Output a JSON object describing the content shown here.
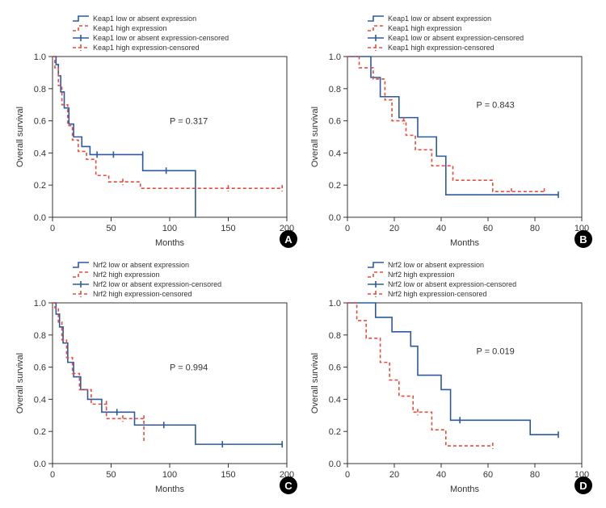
{
  "global": {
    "line_color_low": "#2c5aa0",
    "line_color_high": "#e74c3c",
    "text_color": "#333333",
    "axis_color": "#333333",
    "badge_bg": "#000000",
    "badge_fg": "#ffffff",
    "y_label": "Overall survival",
    "x_label": "Months",
    "font_family": "Arial, Helvetica, sans-serif",
    "axis_fontsize": 11,
    "legend_fontsize": 9,
    "label_fontsize": 11,
    "y_ticks": [
      0,
      0.2,
      0.4,
      0.6,
      0.8,
      1.0
    ]
  },
  "panels": {
    "A": {
      "badge": "A",
      "legend": {
        "low": "Keap1 low or absent expression",
        "high": "Keap1 high expression",
        "low_cens": "Keap1 low or absent expression-censored",
        "high_cens": "Keap1 high expression-censored"
      },
      "p_text": "P = 0.317",
      "p_pos": [
        100,
        0.58
      ],
      "x_ticks": [
        0,
        50,
        100,
        150,
        200
      ],
      "xlim": [
        0,
        200
      ],
      "low_series": [
        [
          0,
          1.0
        ],
        [
          3,
          1.0
        ],
        [
          3,
          0.95
        ],
        [
          5,
          0.95
        ],
        [
          5,
          0.88
        ],
        [
          7,
          0.88
        ],
        [
          7,
          0.78
        ],
        [
          10,
          0.78
        ],
        [
          10,
          0.68
        ],
        [
          14,
          0.68
        ],
        [
          14,
          0.58
        ],
        [
          18,
          0.58
        ],
        [
          18,
          0.5
        ],
        [
          25,
          0.5
        ],
        [
          25,
          0.44
        ],
        [
          32,
          0.44
        ],
        [
          32,
          0.39
        ],
        [
          77,
          0.39
        ],
        [
          77,
          0.29
        ],
        [
          122,
          0.29
        ],
        [
          122,
          0.0
        ]
      ],
      "low_censored": [
        [
          38,
          0.39
        ],
        [
          52,
          0.39
        ],
        [
          77,
          0.39
        ],
        [
          97,
          0.29
        ]
      ],
      "high_series": [
        [
          0,
          1.0
        ],
        [
          2,
          1.0
        ],
        [
          2,
          0.93
        ],
        [
          5,
          0.93
        ],
        [
          5,
          0.82
        ],
        [
          8,
          0.82
        ],
        [
          8,
          0.7
        ],
        [
          13,
          0.7
        ],
        [
          13,
          0.57
        ],
        [
          17,
          0.57
        ],
        [
          17,
          0.48
        ],
        [
          22,
          0.48
        ],
        [
          22,
          0.41
        ],
        [
          29,
          0.41
        ],
        [
          29,
          0.36
        ],
        [
          37,
          0.36
        ],
        [
          37,
          0.26
        ],
        [
          48,
          0.26
        ],
        [
          48,
          0.22
        ],
        [
          75,
          0.22
        ],
        [
          75,
          0.18
        ],
        [
          196,
          0.18
        ]
      ],
      "high_censored": [
        [
          60,
          0.22
        ],
        [
          150,
          0.18
        ],
        [
          196,
          0.18
        ]
      ]
    },
    "B": {
      "badge": "B",
      "legend": {
        "low": "Keap1 low or absent expression",
        "high": "Keap1 high expression",
        "low_cens": "Keap1 low or absent expression-censored",
        "high_cens": "Keap1 high expression-censored"
      },
      "p_text": "P = 0.843",
      "p_pos": [
        55,
        0.68
      ],
      "x_ticks": [
        0,
        20,
        40,
        60,
        80,
        100
      ],
      "xlim": [
        0,
        100
      ],
      "low_series": [
        [
          0,
          1.0
        ],
        [
          10,
          1.0
        ],
        [
          10,
          0.87
        ],
        [
          14,
          0.87
        ],
        [
          14,
          0.75
        ],
        [
          22,
          0.75
        ],
        [
          22,
          0.62
        ],
        [
          30,
          0.62
        ],
        [
          30,
          0.5
        ],
        [
          38,
          0.5
        ],
        [
          38,
          0.38
        ],
        [
          42,
          0.38
        ],
        [
          42,
          0.14
        ],
        [
          90,
          0.14
        ]
      ],
      "low_censored": [
        [
          90,
          0.14
        ]
      ],
      "high_series": [
        [
          0,
          1.0
        ],
        [
          5,
          1.0
        ],
        [
          5,
          0.93
        ],
        [
          11,
          0.93
        ],
        [
          11,
          0.86
        ],
        [
          16,
          0.86
        ],
        [
          16,
          0.73
        ],
        [
          19,
          0.73
        ],
        [
          19,
          0.6
        ],
        [
          25,
          0.6
        ],
        [
          25,
          0.51
        ],
        [
          29,
          0.51
        ],
        [
          29,
          0.42
        ],
        [
          36,
          0.42
        ],
        [
          36,
          0.32
        ],
        [
          45,
          0.32
        ],
        [
          45,
          0.23
        ],
        [
          62,
          0.23
        ],
        [
          62,
          0.16
        ],
        [
          84,
          0.16
        ]
      ],
      "high_censored": [
        [
          24,
          0.6
        ],
        [
          70,
          0.16
        ],
        [
          84,
          0.16
        ]
      ]
    },
    "C": {
      "badge": "C",
      "legend": {
        "low": "Nrf2 low or absent expression",
        "high": "Nrf2 high expression",
        "low_cens": "Nrf2 low or absent expression-censored",
        "high_cens": "Nrf2 high expression-censored"
      },
      "p_text": "P = 0.994",
      "p_pos": [
        100,
        0.58
      ],
      "x_ticks": [
        0,
        50,
        100,
        150,
        200
      ],
      "xlim": [
        0,
        200
      ],
      "low_series": [
        [
          0,
          1.0
        ],
        [
          3,
          1.0
        ],
        [
          3,
          0.93
        ],
        [
          6,
          0.93
        ],
        [
          6,
          0.85
        ],
        [
          9,
          0.85
        ],
        [
          9,
          0.75
        ],
        [
          13,
          0.75
        ],
        [
          13,
          0.63
        ],
        [
          18,
          0.63
        ],
        [
          18,
          0.54
        ],
        [
          24,
          0.54
        ],
        [
          24,
          0.46
        ],
        [
          30,
          0.46
        ],
        [
          30,
          0.4
        ],
        [
          42,
          0.4
        ],
        [
          42,
          0.32
        ],
        [
          70,
          0.32
        ],
        [
          70,
          0.24
        ],
        [
          122,
          0.24
        ],
        [
          122,
          0.12
        ],
        [
          196,
          0.12
        ]
      ],
      "low_censored": [
        [
          55,
          0.32
        ],
        [
          95,
          0.24
        ],
        [
          145,
          0.12
        ],
        [
          196,
          0.12
        ]
      ],
      "high_series": [
        [
          0,
          1.0
        ],
        [
          2,
          1.0
        ],
        [
          2,
          0.97
        ],
        [
          5,
          0.97
        ],
        [
          5,
          0.88
        ],
        [
          8,
          0.88
        ],
        [
          8,
          0.77
        ],
        [
          12,
          0.77
        ],
        [
          12,
          0.66
        ],
        [
          17,
          0.66
        ],
        [
          17,
          0.56
        ],
        [
          23,
          0.56
        ],
        [
          23,
          0.46
        ],
        [
          33,
          0.46
        ],
        [
          33,
          0.37
        ],
        [
          46,
          0.37
        ],
        [
          46,
          0.28
        ],
        [
          78,
          0.28
        ],
        [
          78,
          0.14
        ]
      ],
      "high_censored": [
        [
          46,
          0.37
        ],
        [
          60,
          0.28
        ],
        [
          78,
          0.28
        ]
      ]
    },
    "D": {
      "badge": "D",
      "legend": {
        "low": "Nrf2 low or absent expression",
        "high": "Nrf2 high expression",
        "low_cens": "Nrf2 low or absent expression-censored",
        "high_cens": "Nrf2 high expression-censored"
      },
      "p_text": "P = 0.019",
      "p_pos": [
        55,
        0.68
      ],
      "x_ticks": [
        0,
        20,
        40,
        60,
        80,
        100
      ],
      "xlim": [
        0,
        100
      ],
      "low_series": [
        [
          0,
          1.0
        ],
        [
          12,
          1.0
        ],
        [
          12,
          0.91
        ],
        [
          19,
          0.91
        ],
        [
          19,
          0.82
        ],
        [
          27,
          0.82
        ],
        [
          27,
          0.73
        ],
        [
          30,
          0.73
        ],
        [
          30,
          0.55
        ],
        [
          40,
          0.55
        ],
        [
          40,
          0.46
        ],
        [
          44,
          0.46
        ],
        [
          44,
          0.27
        ],
        [
          78,
          0.27
        ],
        [
          78,
          0.18
        ],
        [
          90,
          0.18
        ]
      ],
      "low_censored": [
        [
          48,
          0.27
        ],
        [
          90,
          0.18
        ]
      ],
      "high_series": [
        [
          0,
          1.0
        ],
        [
          4,
          1.0
        ],
        [
          4,
          0.89
        ],
        [
          8,
          0.89
        ],
        [
          8,
          0.78
        ],
        [
          14,
          0.78
        ],
        [
          14,
          0.63
        ],
        [
          18,
          0.63
        ],
        [
          18,
          0.52
        ],
        [
          22,
          0.52
        ],
        [
          22,
          0.42
        ],
        [
          28,
          0.42
        ],
        [
          28,
          0.32
        ],
        [
          36,
          0.32
        ],
        [
          36,
          0.21
        ],
        [
          42,
          0.21
        ],
        [
          42,
          0.11
        ],
        [
          62,
          0.11
        ]
      ],
      "high_censored": [
        [
          30,
          0.32
        ],
        [
          62,
          0.11
        ]
      ]
    }
  }
}
